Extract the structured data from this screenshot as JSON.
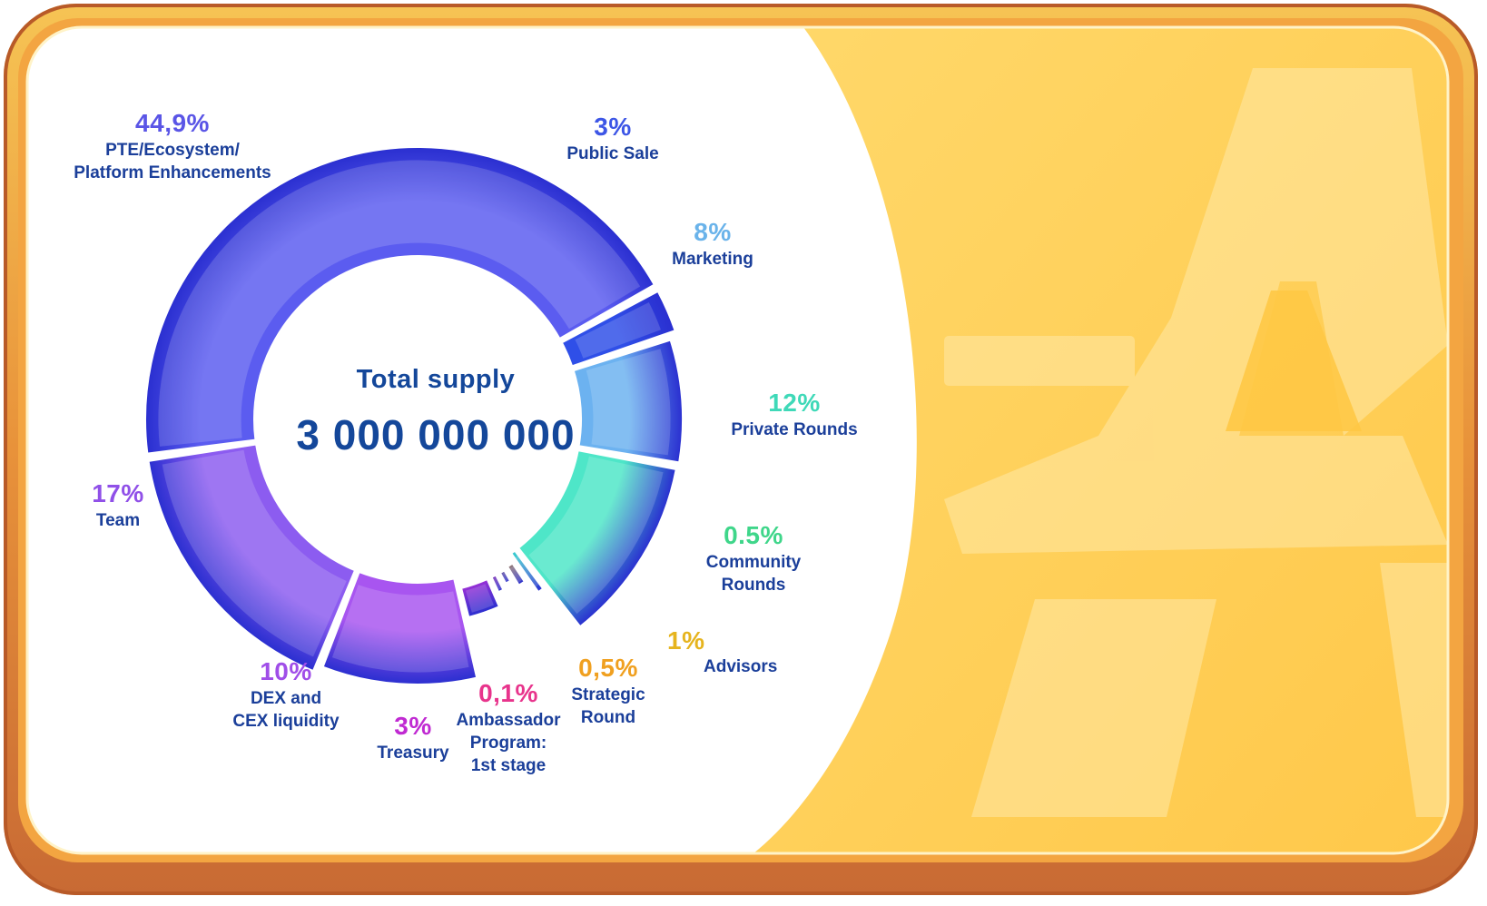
{
  "center": {
    "title": "Total supply",
    "value": "3 000 000 000"
  },
  "colors": {
    "frame_outer": "#c8743a",
    "frame_inner": "#f5a93a",
    "gold_panel": "#ffd45c",
    "text_dark_blue": "#1b3f9a"
  },
  "chart_data": {
    "type": "pie",
    "title": "Total supply",
    "total": "3 000 000 000",
    "slices": [
      {
        "label": "PTE/Ecosystem/\nPlatform Enhancements",
        "pct_text": "44,9%",
        "value": 44.9,
        "color": "#5b5cf0",
        "pct_color": "#5a55e6"
      },
      {
        "label": "Public Sale",
        "pct_text": "3%",
        "value": 3,
        "color": "#2f4fe8",
        "pct_color": "#3d56e6"
      },
      {
        "label": "Marketing",
        "pct_text": "8%",
        "value": 8,
        "color": "#6cb2f0",
        "pct_color": "#6ab3ea"
      },
      {
        "label": "Private Rounds",
        "pct_text": "12%",
        "value": 12,
        "color": "#4ee6c8",
        "pct_color": "#3fd9b8"
      },
      {
        "label": "Community\nRounds",
        "pct_text": "0.5%",
        "value": 0.5,
        "color": "#38c8d0",
        "pct_color": "#3fd68a"
      },
      {
        "label": "Advisors",
        "pct_text": "1%",
        "value": 1,
        "color": "#e8b52a",
        "pct_color": "#e6b41e"
      },
      {
        "label": "Strategic\nRound",
        "pct_text": "0,5%",
        "value": 0.5,
        "color": "#e0a040",
        "pct_color": "#f0a020"
      },
      {
        "label": "Ambassador\nProgram:\n1st stage",
        "pct_text": "0,1%",
        "value": 0.1,
        "color": "#e83a9a",
        "pct_color": "#e8348c"
      },
      {
        "label": "Treasury",
        "pct_text": "3%",
        "value": 3,
        "color": "#c030d8",
        "pct_color": "#c02ad2"
      },
      {
        "label": "DEX and\nCEX liquidity",
        "pct_text": "10%",
        "value": 10,
        "color": "#a855f0",
        "pct_color": "#a04ee8"
      },
      {
        "label": "Team",
        "pct_text": "17%",
        "value": 17,
        "color": "#8c5cf0",
        "pct_color": "#9050e8"
      }
    ]
  }
}
